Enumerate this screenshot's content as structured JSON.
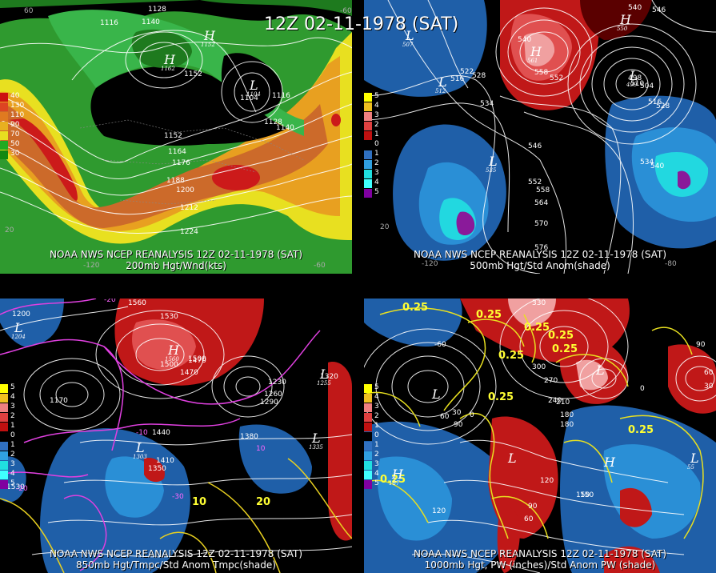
{
  "header": {
    "title": "12Z 02-11-1978 (SAT)"
  },
  "panels": [
    {
      "id": "200mb",
      "caption1": "NOAA NWS NCEP REANALYSIS 12Z 02-11-1978 (SAT)",
      "caption2": "200mb Hgt/Wnd(kts)",
      "legend": [
        "40",
        "130",
        "110",
        "90",
        "70",
        "50",
        "30"
      ],
      "legend_colors": [
        "#cc1111",
        "#dd4422",
        "#e07a20",
        "#e8b020",
        "#e8e020",
        "#22aa22",
        "#118811"
      ],
      "contour_labels": [
        "1128",
        "1116",
        "1140",
        "1152",
        "1104",
        "1116",
        "1128",
        "1140",
        "1152",
        "1164",
        "1176",
        "1188",
        "1200",
        "1212",
        "1224"
      ],
      "centers": [
        {
          "type": "H",
          "value": "1162"
        },
        {
          "type": "L",
          "value": "1104"
        },
        {
          "type": "H",
          "value": "1152"
        }
      ],
      "lon_labels": [
        "60",
        "-60",
        "20",
        "-120",
        "-60"
      ]
    },
    {
      "id": "500mb",
      "caption1": "NOAA NWS NCEP REANALYSIS 12Z 02-11-1978 (SAT)",
      "caption2": "500mb Hgt/Std Anom(shade)",
      "legend": [
        "5",
        "4",
        "3",
        "2",
        "1",
        "0",
        "1",
        "2",
        "3",
        "4",
        "5"
      ],
      "legend_colors": [
        "#ffff00",
        "#f0c020",
        "#f08080",
        "#e04040",
        "#c01010",
        "#000000",
        "#3070c0",
        "#30a0e0",
        "#20e0e0",
        "#40ffff",
        "#8000a0"
      ],
      "contour_labels": [
        "540",
        "546",
        "516",
        "528",
        "522",
        "534",
        "540",
        "552",
        "558",
        "510",
        "498",
        "504",
        "516",
        "528",
        "534",
        "540",
        "546",
        "552",
        "558",
        "564",
        "570",
        "576"
      ],
      "centers": [
        {
          "type": "L",
          "value": "507"
        },
        {
          "type": "L",
          "value": "512"
        },
        {
          "type": "H",
          "value": "561"
        },
        {
          "type": "H",
          "value": "550"
        },
        {
          "type": "L",
          "value": "499"
        },
        {
          "type": "L",
          "value": "535"
        }
      ],
      "lon_labels": [
        "20",
        "-120",
        "-80"
      ]
    },
    {
      "id": "850mb",
      "caption1": "NOAA NWS NCEP REANALYSIS 12Z 02-11-1978 (SAT)",
      "caption2": "850mb Hgt/Tmpc/Std Anom Tmpc(shade)",
      "legend": [
        "5",
        "4",
        "3",
        "2",
        "1",
        "0",
        "1",
        "2",
        "3",
        "4",
        "5"
      ],
      "legend_colors": [
        "#ffff00",
        "#f0c020",
        "#f08080",
        "#e04040",
        "#c01010",
        "#000000",
        "#3070c0",
        "#30a0e0",
        "#20e0e0",
        "#40ffff",
        "#8000a0"
      ],
      "contour_labels": [
        "1200",
        "1560",
        "1530",
        "1500",
        "1470",
        "1440",
        "1410",
        "1380",
        "1350",
        "1320",
        "1290",
        "1260",
        "1230",
        "1170",
        "1530",
        "1500",
        "1470"
      ],
      "magenta_labels": [
        "-20",
        "-10",
        "-30",
        "10",
        "-20"
      ],
      "yellow_labels": [
        "10",
        "20"
      ],
      "centers": [
        {
          "type": "L",
          "value": "1204"
        },
        {
          "type": "H",
          "value": "1560"
        },
        {
          "type": "L",
          "value": "1303"
        },
        {
          "type": "L",
          "value": "1255"
        },
        {
          "type": "L",
          "value": "1335"
        }
      ]
    },
    {
      "id": "1000mb",
      "caption1": "NOAA NWS NCEP REANALYSIS 12Z 02-11-1978 (SAT)",
      "caption2": "1000mb Hgt, PW (inches)/Std Anom PW (shade)",
      "legend": [
        "5",
        "4",
        "3",
        "2",
        "1",
        "0",
        "1",
        "2",
        "3",
        "4",
        "5"
      ],
      "legend_colors": [
        "#ffff00",
        "#f0c020",
        "#f08080",
        "#e04040",
        "#c01010",
        "#000000",
        "#3070c0",
        "#30a0e0",
        "#20e0e0",
        "#40ffff",
        "#8000a0"
      ],
      "contour_labels": [
        "330",
        "300",
        "270",
        "240",
        "210",
        "180",
        "150",
        "120",
        "90",
        "60",
        "30",
        "0",
        "-60",
        "90",
        "60",
        "30",
        "0",
        "150",
        "180",
        "120",
        "90",
        "60"
      ],
      "yellow_labels": [
        "0.25",
        "0.25",
        "0.25",
        "0.25",
        "0.25",
        "0.25",
        "0.25",
        "0.25",
        "0.25"
      ],
      "centers": [
        {
          "type": "L",
          "value": "-"
        },
        {
          "type": "L",
          "value": "-"
        },
        {
          "type": "H",
          "value": "187"
        },
        {
          "type": "L",
          "value": "-"
        },
        {
          "type": "H",
          "value": "-"
        },
        {
          "type": "L",
          "value": "55"
        }
      ]
    }
  ]
}
